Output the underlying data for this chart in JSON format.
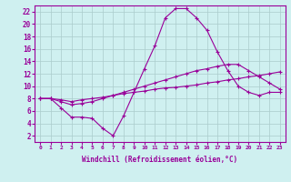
{
  "xlabel": "Windchill (Refroidissement éolien,°C)",
  "ylabel": "",
  "bg_color": "#cff0f0",
  "line_color": "#990099",
  "grid_color": "#aacccc",
  "xlim": [
    -0.5,
    23.5
  ],
  "ylim": [
    1,
    23
  ],
  "xticks": [
    0,
    1,
    2,
    3,
    4,
    5,
    6,
    7,
    8,
    9,
    10,
    11,
    12,
    13,
    14,
    15,
    16,
    17,
    18,
    19,
    20,
    21,
    22,
    23
  ],
  "yticks": [
    2,
    4,
    6,
    8,
    10,
    12,
    14,
    16,
    18,
    20,
    22
  ],
  "line1_x": [
    0,
    1,
    2,
    3,
    4,
    5,
    6,
    7,
    8,
    9,
    10,
    11,
    12,
    13,
    14,
    15,
    16,
    17,
    18,
    19,
    20,
    21,
    22,
    23
  ],
  "line1_y": [
    8,
    8,
    6.5,
    5,
    5,
    4.8,
    3.2,
    2,
    5.2,
    9,
    12.8,
    16.5,
    21,
    22.5,
    22.5,
    21,
    19,
    15.5,
    12.5,
    10,
    9,
    8.5,
    9,
    9
  ],
  "line2_x": [
    0,
    1,
    2,
    3,
    4,
    5,
    6,
    7,
    8,
    9,
    10,
    11,
    12,
    13,
    14,
    15,
    16,
    17,
    18,
    19,
    20,
    21,
    22,
    23
  ],
  "line2_y": [
    8,
    8,
    7.5,
    7,
    7.2,
    7.5,
    8,
    8.5,
    9,
    9.5,
    10,
    10.5,
    11,
    11.5,
    12,
    12.5,
    12.8,
    13.2,
    13.5,
    13.5,
    12.5,
    11.5,
    10.5,
    9.5
  ],
  "line3_x": [
    0,
    1,
    2,
    3,
    4,
    5,
    6,
    7,
    8,
    9,
    10,
    11,
    12,
    13,
    14,
    15,
    16,
    17,
    18,
    19,
    20,
    21,
    22,
    23
  ],
  "line3_y": [
    8,
    8,
    7.8,
    7.5,
    7.8,
    8,
    8.2,
    8.5,
    8.8,
    9,
    9.2,
    9.5,
    9.7,
    9.8,
    10,
    10.2,
    10.5,
    10.7,
    11,
    11.2,
    11.5,
    11.7,
    12,
    12.3
  ]
}
